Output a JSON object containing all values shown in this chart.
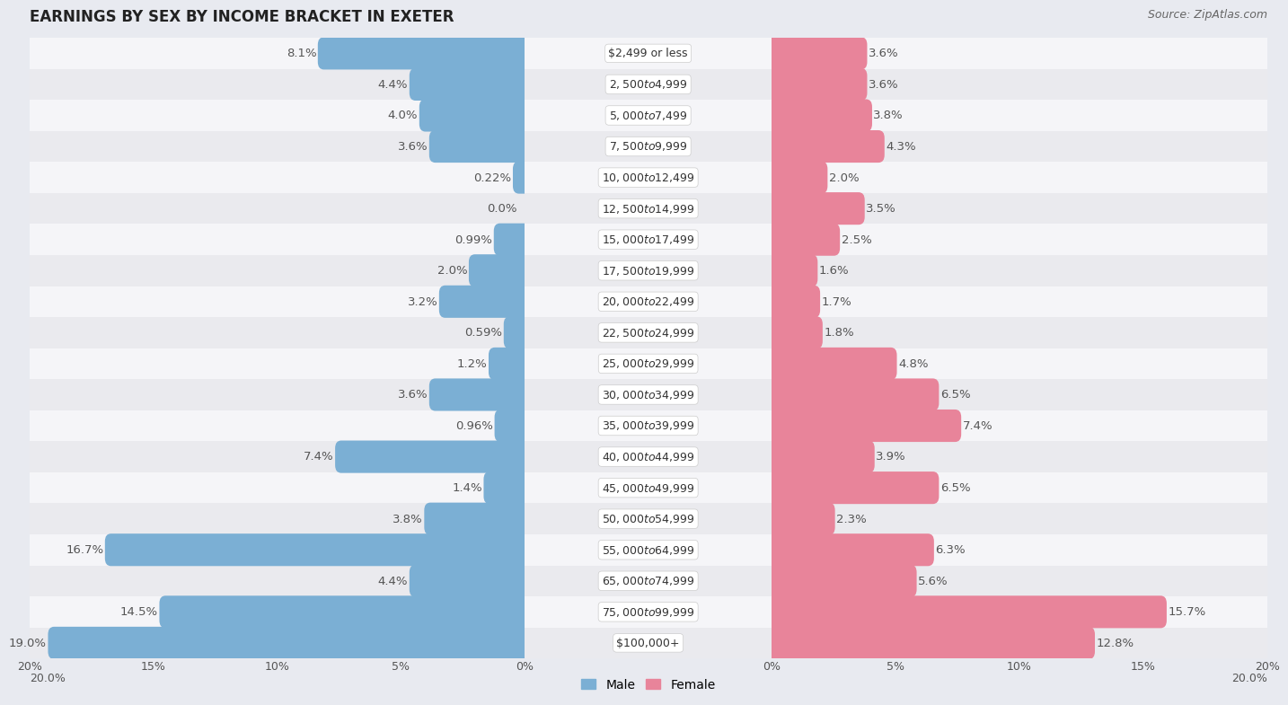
{
  "title": "EARNINGS BY SEX BY INCOME BRACKET IN EXETER",
  "source": "Source: ZipAtlas.com",
  "categories": [
    "$2,499 or less",
    "$2,500 to $4,999",
    "$5,000 to $7,499",
    "$7,500 to $9,999",
    "$10,000 to $12,499",
    "$12,500 to $14,999",
    "$15,000 to $17,499",
    "$17,500 to $19,999",
    "$20,000 to $22,499",
    "$22,500 to $24,999",
    "$25,000 to $29,999",
    "$30,000 to $34,999",
    "$35,000 to $39,999",
    "$40,000 to $44,999",
    "$45,000 to $49,999",
    "$50,000 to $54,999",
    "$55,000 to $64,999",
    "$65,000 to $74,999",
    "$75,000 to $99,999",
    "$100,000+"
  ],
  "male_values": [
    8.1,
    4.4,
    4.0,
    3.6,
    0.22,
    0.0,
    0.99,
    2.0,
    3.2,
    0.59,
    1.2,
    3.6,
    0.96,
    7.4,
    1.4,
    3.8,
    16.7,
    4.4,
    14.5,
    19.0
  ],
  "female_values": [
    3.6,
    3.6,
    3.8,
    4.3,
    2.0,
    3.5,
    2.5,
    1.6,
    1.7,
    1.8,
    4.8,
    6.5,
    7.4,
    3.9,
    6.5,
    2.3,
    6.3,
    5.6,
    15.7,
    12.8
  ],
  "male_color": "#7bafd4",
  "female_color": "#e8849a",
  "male_label_color": "#555555",
  "female_label_color": "#555555",
  "bg_color": "#e8eaf0",
  "row_color_odd": "#f5f5f8",
  "row_color_even": "#eaeaee",
  "axis_limit": 20.0,
  "bar_height": 0.55,
  "title_fontsize": 12,
  "label_fontsize": 9.5,
  "category_fontsize": 9,
  "source_fontsize": 9,
  "tick_fontsize": 9
}
